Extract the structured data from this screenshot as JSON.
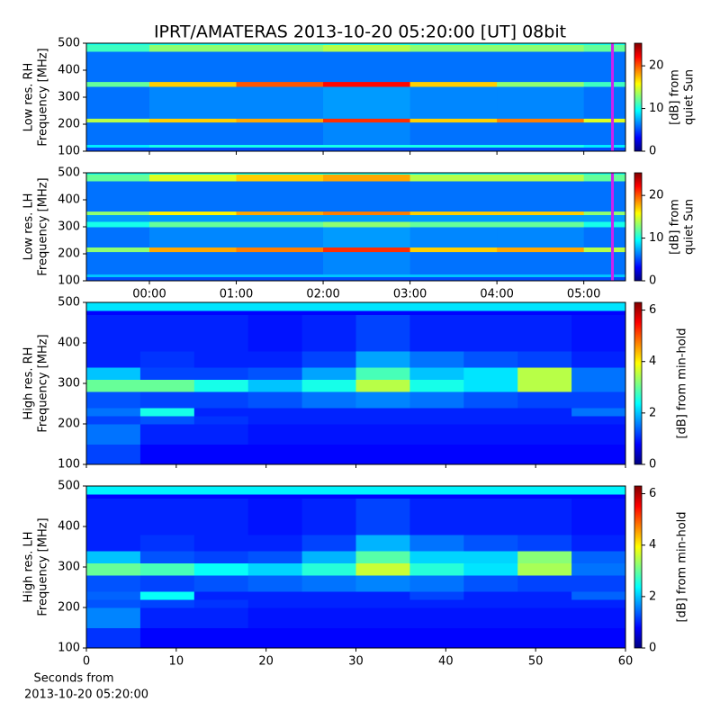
{
  "title": "IPRT/AMATERAS 2013-10-20 05:20:00 [UT]   08bit",
  "chart_data": [
    {
      "type": "heatmap",
      "colormap": "jet",
      "ylabel": [
        "Low res. RH",
        "Frequency [MHz]"
      ],
      "zlabel": [
        "[dB] from",
        "quiet Sun"
      ],
      "xlim": [
        -0.725,
        5.48
      ],
      "ylim": [
        100,
        500
      ],
      "zlim": [
        0,
        25.3
      ],
      "xticks": [
        0,
        1,
        2,
        3,
        4,
        5
      ],
      "xticklabels": false,
      "yticks": [
        100,
        200,
        300,
        400,
        500
      ],
      "zticks": [
        0,
        10,
        20
      ],
      "vline": {
        "x": 5.33,
        "color": "#cc22ee"
      },
      "x_edges": [
        -0.725,
        0,
        1,
        2,
        3,
        4,
        5,
        5.48
      ],
      "y_edges": [
        100,
        115,
        125,
        208,
        222,
        340,
        358,
        470,
        495,
        500
      ],
      "z": [
        [
          5,
          5,
          5,
          5,
          5,
          5,
          5
        ],
        [
          9,
          10,
          10,
          10,
          10,
          10,
          9
        ],
        [
          6,
          6,
          6,
          6.5,
          6,
          6,
          6
        ],
        [
          14,
          17,
          18,
          21,
          17,
          19,
          15
        ],
        [
          6,
          6.5,
          6.5,
          7,
          6.5,
          6.5,
          6
        ],
        [
          12,
          17,
          20,
          22,
          17,
          13,
          11
        ],
        [
          6,
          6,
          6,
          6,
          6,
          6,
          6
        ],
        [
          11,
          13,
          13,
          14,
          13,
          13,
          12
        ],
        [
          10,
          10,
          10,
          10,
          10,
          10,
          10
        ]
      ]
    },
    {
      "type": "heatmap",
      "colormap": "jet",
      "ylabel": [
        "Low res. LH",
        "Frequency [MHz]"
      ],
      "zlabel": [
        "[dB] from",
        "quiet Sun"
      ],
      "xlim": [
        -0.725,
        5.48
      ],
      "ylim": [
        100,
        500
      ],
      "zlim": [
        0,
        25.3
      ],
      "xticks": [
        {
          "value": 0,
          "label": "00:00"
        },
        {
          "value": 1,
          "label": "01:00"
        },
        {
          "value": 2,
          "label": "02:00"
        },
        {
          "value": 3,
          "label": "03:00"
        },
        {
          "value": 4,
          "label": "04:00"
        },
        {
          "value": 5,
          "label": "05:00"
        }
      ],
      "xticklabels": true,
      "yticks": [
        100,
        200,
        300,
        400,
        500
      ],
      "zticks": [
        0,
        10,
        20
      ],
      "vline": {
        "x": 5.33,
        "color": "#cc22ee"
      },
      "x_edges": [
        -0.725,
        0,
        1,
        2,
        3,
        4,
        5,
        5.48
      ],
      "y_edges": [
        100,
        115,
        125,
        208,
        225,
        300,
        320,
        345,
        358,
        470,
        495,
        500
      ],
      "z": [
        [
          5,
          5,
          5,
          5,
          5,
          5,
          5
        ],
        [
          8,
          8,
          8,
          8,
          8,
          8,
          8
        ],
        [
          6,
          6,
          6,
          6.5,
          6,
          6,
          6
        ],
        [
          13,
          18,
          19,
          21,
          17,
          18,
          14
        ],
        [
          6,
          6.5,
          6.5,
          7,
          6.5,
          6.5,
          6
        ],
        [
          10,
          12,
          12,
          13,
          12,
          12,
          10
        ],
        [
          7,
          7,
          7,
          7,
          7,
          7,
          7
        ],
        [
          13,
          16,
          18,
          19,
          17,
          17,
          13
        ],
        [
          6,
          6,
          6,
          6,
          6,
          6,
          6
        ],
        [
          12,
          15,
          17,
          18,
          14,
          14,
          12
        ],
        [
          10,
          10,
          10,
          10,
          10,
          10,
          10
        ]
      ]
    },
    {
      "type": "heatmap",
      "colormap": "jet",
      "ylabel": [
        "High res. RH",
        "Frequency [MHz]"
      ],
      "zlabel": [
        "[dB] from min-hold"
      ],
      "xlim": [
        0,
        60
      ],
      "ylim": [
        100,
        500
      ],
      "zlim": [
        0,
        6.3
      ],
      "xticks": [
        0,
        10,
        20,
        30,
        40,
        50,
        60
      ],
      "xticklabels": false,
      "yticks": [
        100,
        200,
        300,
        400,
        500
      ],
      "zticks": [
        0,
        2,
        4,
        6
      ],
      "x_edges": [
        0,
        6,
        12,
        18,
        24,
        30,
        36,
        42,
        48,
        54,
        60
      ],
      "y_edges": [
        100,
        150,
        200,
        220,
        240,
        280,
        310,
        340,
        380,
        470,
        480,
        500
      ],
      "z": [
        [
          1.2,
          0.8,
          0.8,
          0.8,
          0.8,
          0.8,
          0.8,
          0.8,
          0.8,
          0.8
        ],
        [
          1.5,
          1,
          1,
          0.9,
          0.9,
          0.9,
          0.9,
          0.9,
          0.9,
          0.9
        ],
        [
          1.2,
          1.3,
          1.1,
          1,
          1,
          1,
          1,
          1,
          1,
          1
        ],
        [
          1.5,
          2.5,
          1,
          1,
          1,
          1,
          1,
          1,
          1,
          1.5
        ],
        [
          1.3,
          1.2,
          1.2,
          1.3,
          1.5,
          1.6,
          1.5,
          1.3,
          1.2,
          1.2
        ],
        [
          3,
          3,
          2.5,
          2,
          2.5,
          3.5,
          2.5,
          2.2,
          3.5,
          1.5
        ],
        [
          2,
          1.2,
          1.2,
          1.3,
          1.8,
          2.8,
          2,
          2.2,
          3.5,
          1.5
        ],
        [
          1,
          1.1,
          1,
          1,
          1.2,
          1.8,
          1.5,
          1.3,
          1.2,
          1
        ],
        [
          1,
          1,
          1,
          0.9,
          1,
          1.2,
          1,
          1,
          1,
          0.9
        ],
        [
          0.8,
          0.8,
          0.8,
          0.8,
          0.8,
          0.8,
          0.8,
          0.8,
          0.8,
          0.8
        ],
        [
          2.2,
          2.2,
          2.2,
          2.2,
          2.2,
          2.2,
          2.2,
          2.2,
          2.2,
          2.2
        ]
      ]
    },
    {
      "type": "heatmap",
      "colormap": "jet",
      "ylabel": [
        "High res. LH",
        "Frequency [MHz]"
      ],
      "zlabel": [
        "[dB] from min-hold"
      ],
      "xlabel": [
        "Seconds from",
        "2013-10-20 05:20:00"
      ],
      "xlim": [
        0,
        60
      ],
      "ylim": [
        100,
        500
      ],
      "zlim": [
        0,
        6.3
      ],
      "xticks": [
        0,
        10,
        20,
        30,
        40,
        50,
        60
      ],
      "xticklabels": true,
      "yticks": [
        100,
        200,
        300,
        400,
        500
      ],
      "zticks": [
        0,
        2,
        4,
        6
      ],
      "x_edges": [
        0,
        6,
        12,
        18,
        24,
        30,
        36,
        42,
        48,
        54,
        60
      ],
      "y_edges": [
        100,
        150,
        200,
        220,
        240,
        280,
        310,
        340,
        380,
        470,
        480,
        500
      ],
      "z": [
        [
          1.1,
          0.8,
          0.8,
          0.8,
          0.8,
          0.8,
          0.8,
          0.8,
          0.8,
          0.8
        ],
        [
          1.6,
          1,
          1,
          0.9,
          0.9,
          0.9,
          0.9,
          0.9,
          0.9,
          0.9
        ],
        [
          1.3,
          1.2,
          1.1,
          1,
          1,
          1,
          1,
          1,
          1,
          1
        ],
        [
          1.4,
          2.4,
          1,
          1,
          1,
          1,
          1.2,
          1,
          1,
          1.4
        ],
        [
          1.3,
          1.2,
          1.3,
          1.4,
          1.5,
          1.6,
          1.5,
          1.3,
          1.2,
          1.2
        ],
        [
          3,
          2.8,
          2.4,
          2.1,
          2.6,
          3.6,
          2.6,
          2.2,
          3.4,
          1.5
        ],
        [
          2,
          1.3,
          1.2,
          1.3,
          1.9,
          2.9,
          2.1,
          2.1,
          3.2,
          1.4
        ],
        [
          1,
          1.1,
          1,
          1,
          1.2,
          1.9,
          1.5,
          1.3,
          1.2,
          1
        ],
        [
          1,
          1,
          1,
          0.9,
          1,
          1.2,
          1,
          1,
          1,
          0.9
        ],
        [
          0.8,
          0.8,
          0.8,
          0.8,
          0.8,
          0.8,
          0.8,
          0.8,
          0.8,
          0.8
        ],
        [
          2.3,
          2.3,
          2.3,
          2.3,
          2.3,
          2.3,
          2.3,
          2.3,
          2.3,
          2.3
        ]
      ]
    }
  ]
}
